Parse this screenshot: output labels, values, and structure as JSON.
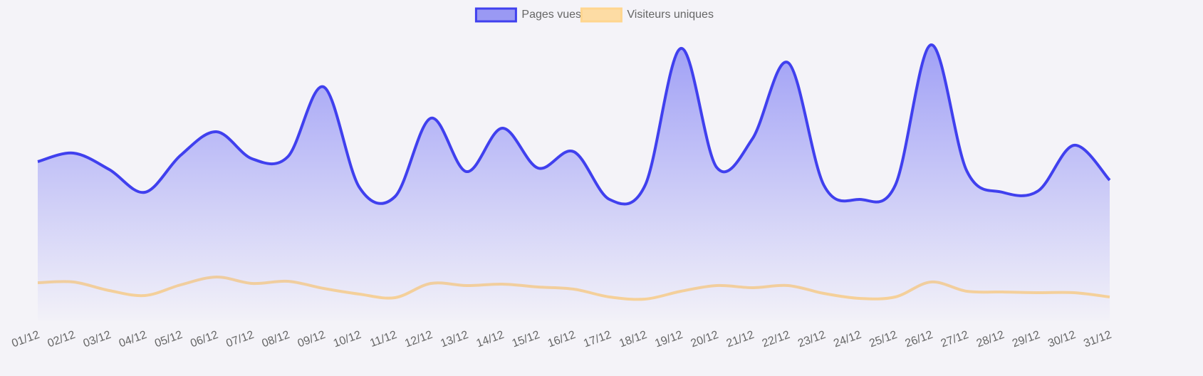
{
  "chart_data": {
    "type": "area",
    "categories": [
      "01/12",
      "02/12",
      "03/12",
      "04/12",
      "05/12",
      "06/12",
      "07/12",
      "08/12",
      "09/12",
      "10/12",
      "11/12",
      "12/12",
      "13/12",
      "14/12",
      "15/12",
      "16/12",
      "17/12",
      "18/12",
      "19/12",
      "20/12",
      "21/12",
      "22/12",
      "23/12",
      "24/12",
      "25/12",
      "26/12",
      "27/12",
      "28/12",
      "29/12",
      "30/12",
      "31/12"
    ],
    "series": [
      {
        "name": "Pages vues",
        "color": "#4040ee",
        "values": [
          223,
          235,
          212,
          180,
          232,
          265,
          227,
          230,
          328,
          187,
          174,
          284,
          209,
          270,
          214,
          237,
          170,
          190,
          382,
          215,
          255,
          362,
          190,
          170,
          190,
          387,
          210,
          180,
          182,
          246,
          197
        ]
      },
      {
        "name": "Visiteurs uniques",
        "color": "#ffd68f",
        "values": [
          53,
          54,
          42,
          35,
          50,
          61,
          52,
          55,
          45,
          37,
          32,
          52,
          49,
          51,
          47,
          44,
          33,
          30,
          41,
          49,
          46,
          49,
          38,
          31,
          33,
          54,
          41,
          40,
          39,
          39,
          33
        ]
      }
    ],
    "ylim": [
      0,
      400
    ],
    "legend": "top"
  }
}
